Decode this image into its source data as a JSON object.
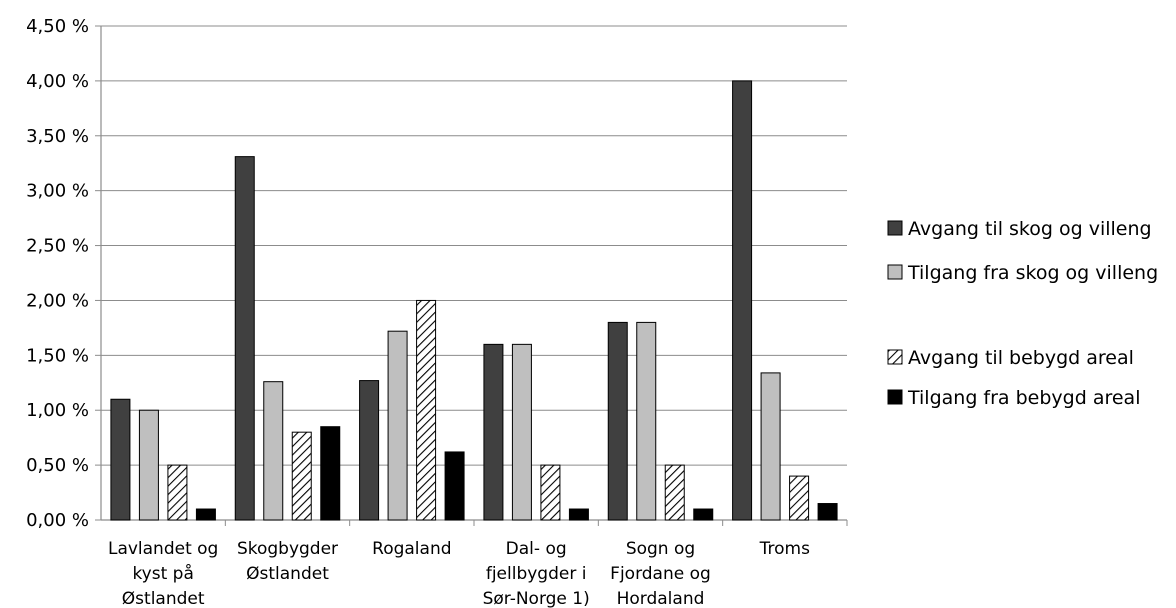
{
  "chart_data": {
    "type": "bar",
    "title": "",
    "xlabel": "",
    "ylabel": "",
    "ylim": [
      0,
      4.5
    ],
    "y_ticks": [
      "0,00 %",
      "0,50 %",
      "1,00 %",
      "1,50 %",
      "2,00 %",
      "2,50 %",
      "3,00 %",
      "3,50 %",
      "4,00 %",
      "4,50 %"
    ],
    "grid": "horizontal",
    "legend_position": "right",
    "categories": [
      [
        "Lavlandet og",
        "kyst  på",
        "Østlandet"
      ],
      [
        "Skogbygder",
        "Østlandet"
      ],
      [
        "Rogaland"
      ],
      [
        "Dal- og",
        "fjellbygder  i",
        "Sør-Norge 1)"
      ],
      [
        "Sogn og",
        "Fjordane og",
        "Hordaland"
      ],
      [
        "Troms"
      ]
    ],
    "series": [
      {
        "name": "Avgang til skog og villeng",
        "values": [
          1.1,
          3.31,
          1.27,
          1.6,
          1.8,
          4.0
        ],
        "color": "#404040",
        "pattern": "solid"
      },
      {
        "name": "Tilgang fra skog og villeng",
        "values": [
          1.0,
          1.26,
          1.72,
          1.6,
          1.8,
          1.34
        ],
        "color": "#bfbfbf",
        "pattern": "solid"
      },
      {
        "name": "Avgang til bebygd areal",
        "values": [
          0.5,
          0.8,
          2.0,
          0.5,
          0.5,
          0.4
        ],
        "color": "#ffffff",
        "pattern": "diagonal-hatch"
      },
      {
        "name": "Tilgang fra bebygd areal",
        "values": [
          0.1,
          0.85,
          0.62,
          0.1,
          0.1,
          0.15
        ],
        "color": "#000000",
        "pattern": "solid"
      }
    ]
  }
}
